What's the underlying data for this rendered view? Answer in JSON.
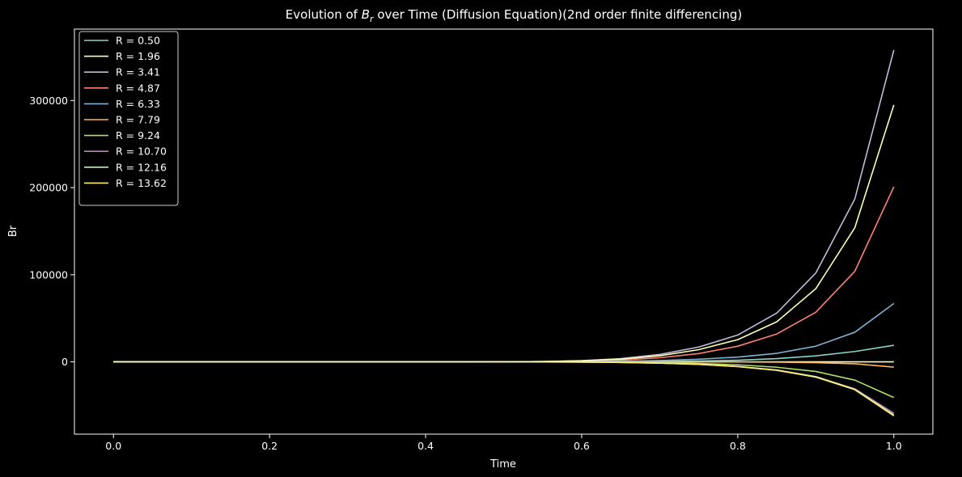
{
  "chart_data": {
    "type": "line",
    "title_prefix": "Evolution of ",
    "title_symbol_main": "B",
    "title_symbol_sub": "r",
    "title_suffix": " over Time (Diffusion Equation)(2nd order finite differencing)",
    "xlabel": "Time",
    "ylabel": "Br",
    "xlim": [
      -0.05,
      1.05
    ],
    "ylim": [
      -83000,
      382000
    ],
    "x_ticks": [
      0.0,
      0.2,
      0.4,
      0.6,
      0.8,
      1.0
    ],
    "x_tick_labels": [
      "0.0",
      "0.2",
      "0.4",
      "0.6",
      "0.8",
      "1.0"
    ],
    "y_ticks": [
      0,
      100000,
      200000,
      300000
    ],
    "y_tick_labels": [
      "0",
      "100000",
      "200000",
      "300000"
    ],
    "grid": false,
    "legend_position": "top-left",
    "background": "#000000",
    "x": [
      0.0,
      0.05,
      0.1,
      0.15,
      0.2,
      0.25,
      0.3,
      0.35,
      0.4,
      0.45,
      0.5,
      0.55,
      0.6,
      0.65,
      0.7,
      0.75,
      0.8,
      0.85,
      0.9,
      0.95,
      1.0
    ],
    "series": [
      {
        "name": "R = 0.50",
        "color": "#8dd3c7",
        "values": [
          0,
          0,
          0,
          0,
          0,
          0,
          0,
          0,
          0,
          0,
          10,
          30,
          80,
          200,
          450,
          950,
          1900,
          3700,
          6900,
          11900,
          19000
        ]
      },
      {
        "name": "R = 1.96",
        "color": "#feffb3",
        "values": [
          0,
          0,
          0,
          0,
          0,
          0,
          0,
          0,
          0,
          0,
          0,
          0,
          0,
          0,
          0,
          0,
          0,
          0,
          0,
          0,
          0
        ]
      },
      {
        "name": "R = 3.41",
        "color": "#bfbbd9",
        "values": [
          0,
          0,
          0,
          0,
          0,
          0,
          0,
          0,
          0,
          0,
          100,
          400,
          1400,
          3700,
          8500,
          17000,
          30800,
          56000,
          102000,
          187000,
          358000
        ]
      },
      {
        "name": "R = 4.87",
        "color": "#fa8174",
        "values": [
          0,
          0,
          0,
          0,
          0,
          0,
          0,
          0,
          0,
          0,
          60,
          230,
          800,
          2000,
          4700,
          9500,
          18000,
          32000,
          57000,
          104000,
          201000
        ]
      },
      {
        "name": "R = 6.33",
        "color": "#81b1d2",
        "values": [
          0,
          0,
          0,
          0,
          0,
          0,
          0,
          0,
          0,
          0,
          20,
          80,
          260,
          700,
          1500,
          3000,
          5500,
          9800,
          18000,
          34000,
          67000
        ]
      },
      {
        "name": "R = 7.79",
        "color": "#fdb462",
        "values": [
          0,
          0,
          0,
          0,
          0,
          0,
          0,
          0,
          0,
          0,
          0,
          0,
          0,
          0,
          -20,
          -60,
          -160,
          -400,
          -900,
          -2200,
          -6000
        ]
      },
      {
        "name": "R = 9.24",
        "color": "#b3de69",
        "values": [
          0,
          0,
          0,
          0,
          0,
          0,
          0,
          0,
          0,
          0,
          -10,
          -40,
          -150,
          -400,
          -900,
          -1800,
          -3400,
          -6200,
          -11000,
          -21000,
          -41000
        ]
      },
      {
        "name": "R = 10.70",
        "color": "#bc82bd",
        "values": [
          0,
          0,
          0,
          0,
          0,
          0,
          0,
          0,
          0,
          0,
          -20,
          -70,
          -250,
          -650,
          -1400,
          -2800,
          -5300,
          -9500,
          -17000,
          -31000,
          -59000
        ]
      },
      {
        "name": "R = 12.16",
        "color": "#ccebc4",
        "values": [
          0,
          0,
          0,
          0,
          0,
          0,
          0,
          0,
          0,
          0,
          -20,
          -70,
          -240,
          -620,
          -1400,
          -2800,
          -5300,
          -9400,
          -17000,
          -31500,
          -61000
        ]
      },
      {
        "name": "R = 13.62",
        "color": "#ffed6f",
        "values": [
          0,
          0,
          0,
          0,
          0,
          0,
          0,
          0,
          0,
          0,
          -20,
          -75,
          -260,
          -650,
          -1500,
          -2900,
          -5500,
          -9700,
          -17500,
          -32000,
          -62000
        ]
      }
    ],
    "overlay_series": {
      "name": "R = 13.62",
      "color": "#feffb3",
      "values": [
        0,
        0,
        0,
        0,
        0,
        0,
        0,
        0,
        0,
        0,
        100,
        350,
        1200,
        3000,
        7000,
        14000,
        25500,
        46000,
        84000,
        154000,
        295000
      ]
    }
  }
}
